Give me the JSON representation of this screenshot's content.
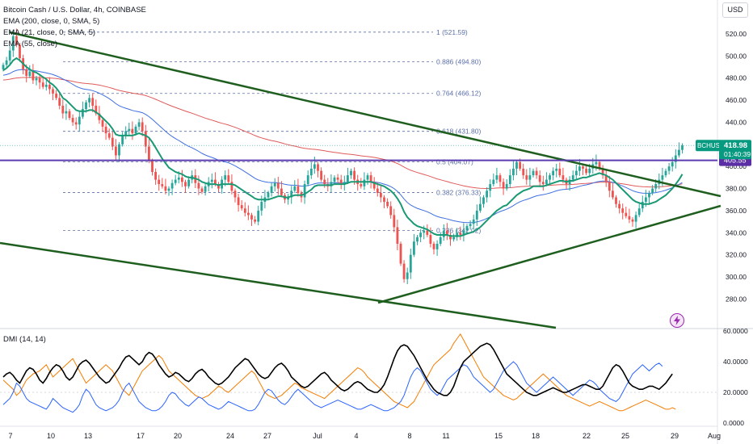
{
  "header": {
    "symbol_title": "Bitcoin Cash / U.S. Dollar, 4h, COINBASE",
    "ema1": "EMA (200, close, 0, SMA, 5)",
    "ema2": "EMA (21, close, 0, SMA, 5)",
    "ema3": "EMA (55, close)",
    "dmi_label": "DMI (14, 14)",
    "currency_button": "USD",
    "alert_icon": "lightning-icon"
  },
  "colors": {
    "bull": "#26a69a",
    "bear": "#ef5350",
    "ema200": "#e05a5a",
    "ema21": "#1a9975",
    "ema55": "#3e6fe0",
    "trendline": "#1e5e1e",
    "fib": "#5b6fa8",
    "level": "#5a3bb0",
    "dmi_adx": "#000000",
    "dmi_plus": "#2962ff",
    "dmi_minus": "#f57c00",
    "price_badge": "#089981",
    "level_badge": "#5b2ea6"
  },
  "chart_data": [
    {
      "type": "candlestick",
      "ylim": [
        270,
        530
      ],
      "y_ticks": [
        "520.00",
        "500.00",
        "480.00",
        "460.00",
        "440.00",
        "420.00",
        "400.00",
        "380.00",
        "360.00",
        "340.00",
        "320.00",
        "300.00",
        "280.00"
      ],
      "x_ticks": [
        "7",
        "10",
        "13",
        "17",
        "20",
        "24",
        "27",
        "Jul",
        "4",
        "8",
        "11",
        "15",
        "18",
        "22",
        "25",
        "29",
        "Aug"
      ],
      "fib_levels": [
        {
          "label": "1 (521.59)",
          "value": 521.59
        },
        {
          "label": "0.886 (494.80)",
          "value": 494.8
        },
        {
          "label": "0.764 (466.12)",
          "value": 466.12
        },
        {
          "label": "0.618 (431.80)",
          "value": 431.8
        },
        {
          "label": "0.5 (404.07)",
          "value": 404.07
        },
        {
          "label": "0.382 (376.33)",
          "value": 376.33
        },
        {
          "label": "0.236 (342.02)",
          "value": 342.02
        }
      ],
      "horizontal_level": {
        "value": 405.55,
        "label": "405.55"
      },
      "last_price": {
        "symbol": "BCHUSD",
        "value": "418.98",
        "countdown": "01:40:39",
        "y": 418.98
      },
      "closes": [
        492,
        496,
        505,
        518,
        510,
        498,
        488,
        482,
        486,
        478,
        480,
        476,
        472,
        474,
        470,
        466,
        462,
        455,
        448,
        450,
        444,
        440,
        438,
        445,
        452,
        458,
        462,
        455,
        448,
        442,
        436,
        430,
        426,
        418,
        410,
        420,
        428,
        432,
        434,
        430,
        436,
        440,
        432,
        418,
        405,
        395,
        388,
        384,
        382,
        378,
        380,
        385,
        388,
        390,
        386,
        382,
        388,
        392,
        385,
        380,
        377,
        382,
        386,
        388,
        384,
        380,
        388,
        392,
        386,
        378,
        372,
        365,
        362,
        358,
        356,
        352,
        350,
        360,
        368,
        372,
        376,
        382,
        385,
        380,
        374,
        370,
        372,
        378,
        382,
        376,
        372,
        384,
        392,
        398,
        402,
        396,
        388,
        384,
        382,
        386,
        390,
        388,
        384,
        386,
        392,
        396,
        388,
        384,
        382,
        388,
        392,
        386,
        380,
        376,
        372,
        368,
        364,
        356,
        345,
        330,
        312,
        298,
        304,
        320,
        332,
        336,
        340,
        342,
        338,
        330,
        325,
        330,
        336,
        342,
        338,
        334,
        336,
        340,
        338,
        342,
        346,
        348,
        352,
        360,
        366,
        372,
        378,
        384,
        388,
        392,
        386,
        380,
        384,
        392,
        398,
        404,
        398,
        392,
        388,
        392,
        396,
        392,
        386,
        384,
        388,
        392,
        396,
        398,
        392,
        388,
        384,
        388,
        392,
        396,
        400,
        398,
        394,
        398,
        402,
        404,
        398,
        392,
        386,
        378,
        372,
        366,
        362,
        358,
        355,
        352,
        350,
        356,
        362,
        368,
        372,
        376,
        380,
        384,
        388,
        392,
        396,
        400,
        404,
        410,
        415,
        418.98
      ],
      "ema21": [
        487,
        489,
        492,
        496,
        498,
        496,
        493,
        490,
        488,
        486,
        485,
        483,
        481,
        479,
        476,
        474,
        471,
        467,
        462,
        460,
        457,
        454,
        451,
        450,
        450,
        450,
        451,
        451,
        449,
        447,
        444,
        441,
        438,
        434,
        429,
        428,
        428,
        428,
        428,
        428,
        429,
        430,
        429,
        428,
        426,
        422,
        417,
        412,
        407,
        403,
        399,
        397,
        395,
        394,
        393,
        391,
        390,
        390,
        389,
        388,
        386,
        385,
        384,
        384,
        384,
        383,
        384,
        384,
        384,
        384,
        383,
        381,
        379,
        377,
        375,
        373,
        371,
        370,
        370,
        370,
        370,
        371,
        372,
        373,
        373,
        372,
        372,
        373,
        374,
        374,
        374,
        375,
        377,
        379,
        382,
        383,
        383,
        383,
        383,
        383,
        384,
        384,
        384,
        384,
        385,
        386,
        386,
        386,
        386,
        386,
        386,
        386,
        385,
        384,
        383,
        382,
        380,
        378,
        375,
        371,
        366,
        359,
        354,
        351,
        348,
        346,
        345,
        344,
        343,
        341,
        339,
        338,
        338,
        338,
        338,
        337,
        337,
        337,
        337,
        338,
        339,
        340,
        341,
        343,
        345,
        348,
        351,
        354,
        357,
        360,
        362,
        364,
        365,
        368,
        371,
        374,
        376,
        378,
        379,
        380,
        382,
        382,
        382,
        382,
        383,
        384,
        385,
        386,
        387,
        387,
        386,
        387,
        387,
        388,
        389,
        390,
        390,
        391,
        392,
        393,
        394,
        393,
        392,
        390,
        388,
        385,
        382,
        379,
        376,
        373,
        370,
        368,
        367,
        366,
        366,
        366,
        367,
        368,
        370,
        372,
        374,
        377,
        380,
        384,
        388,
        393
      ]
    },
    {
      "type": "line",
      "name": "DMI (14, 14)",
      "ylim": [
        0,
        60
      ],
      "y_ticks": [
        "60.0000",
        "40.0000",
        "20.0000",
        "0.0000"
      ],
      "adx": [
        30,
        32,
        33,
        31,
        28,
        26,
        30,
        34,
        36,
        35,
        32,
        28,
        26,
        29,
        33,
        36,
        38,
        37,
        34,
        30,
        28,
        30,
        34,
        38,
        40,
        41,
        39,
        36,
        33,
        30,
        28,
        26,
        27,
        30,
        33,
        36,
        40,
        43,
        44,
        42,
        40,
        38,
        40,
        44,
        46,
        45,
        42,
        38,
        35,
        32,
        30,
        31,
        33,
        32,
        30,
        28,
        27,
        29,
        32,
        34,
        35,
        33,
        30,
        28,
        26,
        25,
        26,
        28,
        30,
        33,
        36,
        38,
        40,
        42,
        41,
        38,
        35,
        32,
        30,
        29,
        30,
        33,
        36,
        38,
        39,
        37,
        34,
        30,
        28,
        26,
        24,
        23,
        24,
        26,
        28,
        30,
        32,
        33,
        31,
        28,
        26,
        24,
        22,
        21,
        22,
        24,
        26,
        27,
        26,
        24,
        22,
        21,
        20,
        20,
        22,
        25,
        30,
        36,
        42,
        47,
        50,
        51,
        50,
        47,
        44,
        40,
        36,
        32,
        28,
        25,
        22,
        20,
        19,
        18,
        18,
        20,
        24,
        30,
        36,
        40,
        42,
        44,
        46,
        48,
        50,
        51,
        52,
        51,
        48,
        44,
        40,
        36,
        32,
        30,
        28,
        26,
        24,
        22,
        20,
        19,
        18,
        18,
        19,
        20,
        21,
        22,
        23,
        22,
        21,
        20,
        20,
        21,
        22,
        23,
        24,
        25,
        25,
        24,
        23,
        22,
        22,
        24,
        28,
        32,
        36,
        38,
        37,
        34,
        30,
        26,
        24,
        23,
        22,
        22,
        23,
        24,
        24,
        23,
        22,
        24,
        26,
        29,
        32
      ],
      "di_plus": [
        12,
        14,
        16,
        20,
        26,
        24,
        20,
        16,
        14,
        13,
        12,
        11,
        10,
        9,
        12,
        16,
        14,
        12,
        10,
        9,
        8,
        7,
        9,
        12,
        18,
        22,
        20,
        16,
        12,
        10,
        9,
        8,
        9,
        10,
        12,
        15,
        20,
        24,
        26,
        22,
        18,
        14,
        12,
        10,
        9,
        8,
        8,
        9,
        11,
        14,
        18,
        20,
        19,
        16,
        14,
        12,
        11,
        13,
        15,
        17,
        16,
        14,
        12,
        11,
        10,
        9,
        10,
        12,
        14,
        13,
        12,
        11,
        10,
        9,
        8,
        8,
        9,
        12,
        16,
        20,
        22,
        21,
        18,
        15,
        13,
        12,
        14,
        17,
        20,
        22,
        20,
        18,
        16,
        14,
        12,
        11,
        10,
        11,
        12,
        13,
        14,
        15,
        14,
        13,
        12,
        11,
        10,
        9,
        9,
        10,
        11,
        12,
        11,
        10,
        9,
        8,
        8,
        9,
        10,
        12,
        14,
        18,
        24,
        30,
        34,
        36,
        34,
        30,
        26,
        22,
        20,
        18,
        20,
        24,
        28,
        30,
        32,
        34,
        36,
        38,
        37,
        34,
        30,
        28,
        26,
        24,
        22,
        20,
        22,
        26,
        30,
        34,
        36,
        38,
        40,
        38,
        34,
        30,
        26,
        24,
        22,
        20,
        22,
        24,
        26,
        28,
        30,
        28,
        26,
        24,
        22,
        20,
        18,
        20,
        22,
        24,
        26,
        28,
        27,
        25,
        22,
        20,
        18,
        16,
        15,
        14,
        16,
        20,
        24,
        28,
        32,
        34,
        36,
        38,
        36,
        34,
        36,
        38,
        39,
        37
      ],
      "di_minus": [
        28,
        26,
        24,
        22,
        18,
        20,
        24,
        28,
        30,
        32,
        33,
        34,
        36,
        38,
        34,
        30,
        32,
        34,
        36,
        38,
        40,
        42,
        38,
        34,
        30,
        26,
        28,
        30,
        32,
        34,
        36,
        38,
        36,
        34,
        30,
        26,
        22,
        20,
        18,
        22,
        26,
        30,
        34,
        36,
        38,
        40,
        42,
        44,
        42,
        38,
        34,
        32,
        30,
        28,
        26,
        24,
        22,
        20,
        18,
        17,
        16,
        17,
        18,
        20,
        22,
        24,
        23,
        21,
        20,
        22,
        24,
        26,
        28,
        30,
        32,
        34,
        32,
        28,
        24,
        20,
        18,
        17,
        16,
        17,
        18,
        20,
        22,
        24,
        26,
        25,
        23,
        22,
        21,
        20,
        19,
        18,
        17,
        16,
        18,
        20,
        22,
        24,
        26,
        28,
        30,
        32,
        34,
        36,
        35,
        33,
        30,
        28,
        26,
        24,
        22,
        20,
        18,
        16,
        14,
        13,
        12,
        11,
        10,
        12,
        14,
        18,
        22,
        26,
        30,
        34,
        38,
        40,
        42,
        44,
        46,
        48,
        52,
        55,
        58,
        54,
        50,
        46,
        42,
        38,
        34,
        30,
        28,
        26,
        24,
        22,
        20,
        18,
        17,
        16,
        15,
        16,
        18,
        20,
        22,
        24,
        26,
        28,
        30,
        32,
        30,
        28,
        26,
        24,
        22,
        20,
        18,
        17,
        16,
        15,
        14,
        13,
        12,
        11,
        12,
        13,
        14,
        13,
        12,
        11,
        10,
        9,
        8,
        8,
        9,
        10,
        11,
        12,
        13,
        14,
        15,
        14,
        13,
        12,
        11,
        10,
        9,
        9,
        10,
        9
      ]
    }
  ]
}
